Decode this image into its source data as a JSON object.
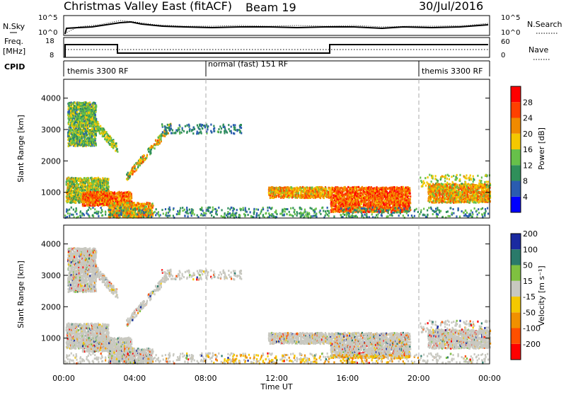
{
  "header": {
    "title": "Christmas Valley East (fitACF)",
    "beam": "Beam 19",
    "date": "30/Jul/2016"
  },
  "top_panels": {
    "nsky_label": "N.Sky",
    "nsearch_label": "N.Search",
    "count_ticks": [
      "10^5",
      "10^0"
    ],
    "freq_label_1": "Freq.",
    "freq_label_2": "[MHz]",
    "freq_ticks": [
      "18",
      "8"
    ],
    "nave_label": "Nave",
    "nave_ticks": [
      "60",
      "0"
    ],
    "cpid_label": "CPID",
    "cpid_segments": [
      {
        "label": "themis 3300 RF",
        "start": 0,
        "end": 8
      },
      {
        "label": "normal (fast) 151 RF",
        "start": 8,
        "end": 20
      },
      {
        "label": "themis 3300 RF",
        "start": 20,
        "end": 24
      }
    ]
  },
  "chart_data": [
    {
      "type": "heatmap",
      "panel": "power",
      "ylabel": "Slant Range [km]",
      "yticks": [
        1000,
        2000,
        3000,
        4000
      ],
      "ylim": [
        180,
        4600
      ],
      "xlim": [
        0,
        24
      ],
      "colorbar_label": "Power [dB]",
      "colorbar_ticks": [
        4,
        8,
        12,
        16,
        20,
        24,
        28
      ],
      "colorbar_range": [
        0,
        30
      ],
      "colors": [
        "#0000ff",
        "#2a5cb0",
        "#2f8f5a",
        "#67c04a",
        "#f4c800",
        "#f08a00",
        "#ff4000",
        "#ff0000"
      ],
      "regions": [
        {
          "t": [
            0.1,
            2.5
          ],
          "r": [
            700,
            1500
          ],
          "level": 14
        },
        {
          "t": [
            1.0,
            3.8
          ],
          "r": [
            600,
            1050
          ],
          "level": 24
        },
        {
          "t": [
            2.5,
            5.0
          ],
          "r": [
            220,
            700
          ],
          "level": 20
        },
        {
          "t": [
            15.0,
            19.5
          ],
          "r": [
            400,
            1200
          ],
          "level": 24
        },
        {
          "t": [
            11.5,
            15.0
          ],
          "r": [
            850,
            1200
          ],
          "level": 20
        },
        {
          "t": [
            20.5,
            24.0
          ],
          "r": [
            700,
            1300
          ],
          "level": 20
        },
        {
          "t": [
            0.2,
            1.8
          ],
          "r": [
            2500,
            3900
          ],
          "level": 12
        }
      ]
    },
    {
      "type": "heatmap",
      "panel": "velocity",
      "ylabel": "Slant Range [km]",
      "yticks": [
        1000,
        2000,
        3000,
        4000
      ],
      "ylim": [
        180,
        4600
      ],
      "xlim": [
        0,
        24
      ],
      "xticks": [
        "00:00",
        "04:00",
        "08:00",
        "12:00",
        "16:00",
        "20:00",
        "00:00"
      ],
      "xlabel": "Time UT",
      "colorbar_label": "Velocity [m s⁻¹]",
      "colorbar_ticks": [
        200,
        100,
        50,
        15,
        -15,
        -50,
        -100,
        -200
      ],
      "colors": [
        "#1a2aa0",
        "#2a7a6a",
        "#7fc040",
        "#c8c8c0",
        "#f4c800",
        "#f09000",
        "#ff5000",
        "#ff0000"
      ]
    }
  ]
}
